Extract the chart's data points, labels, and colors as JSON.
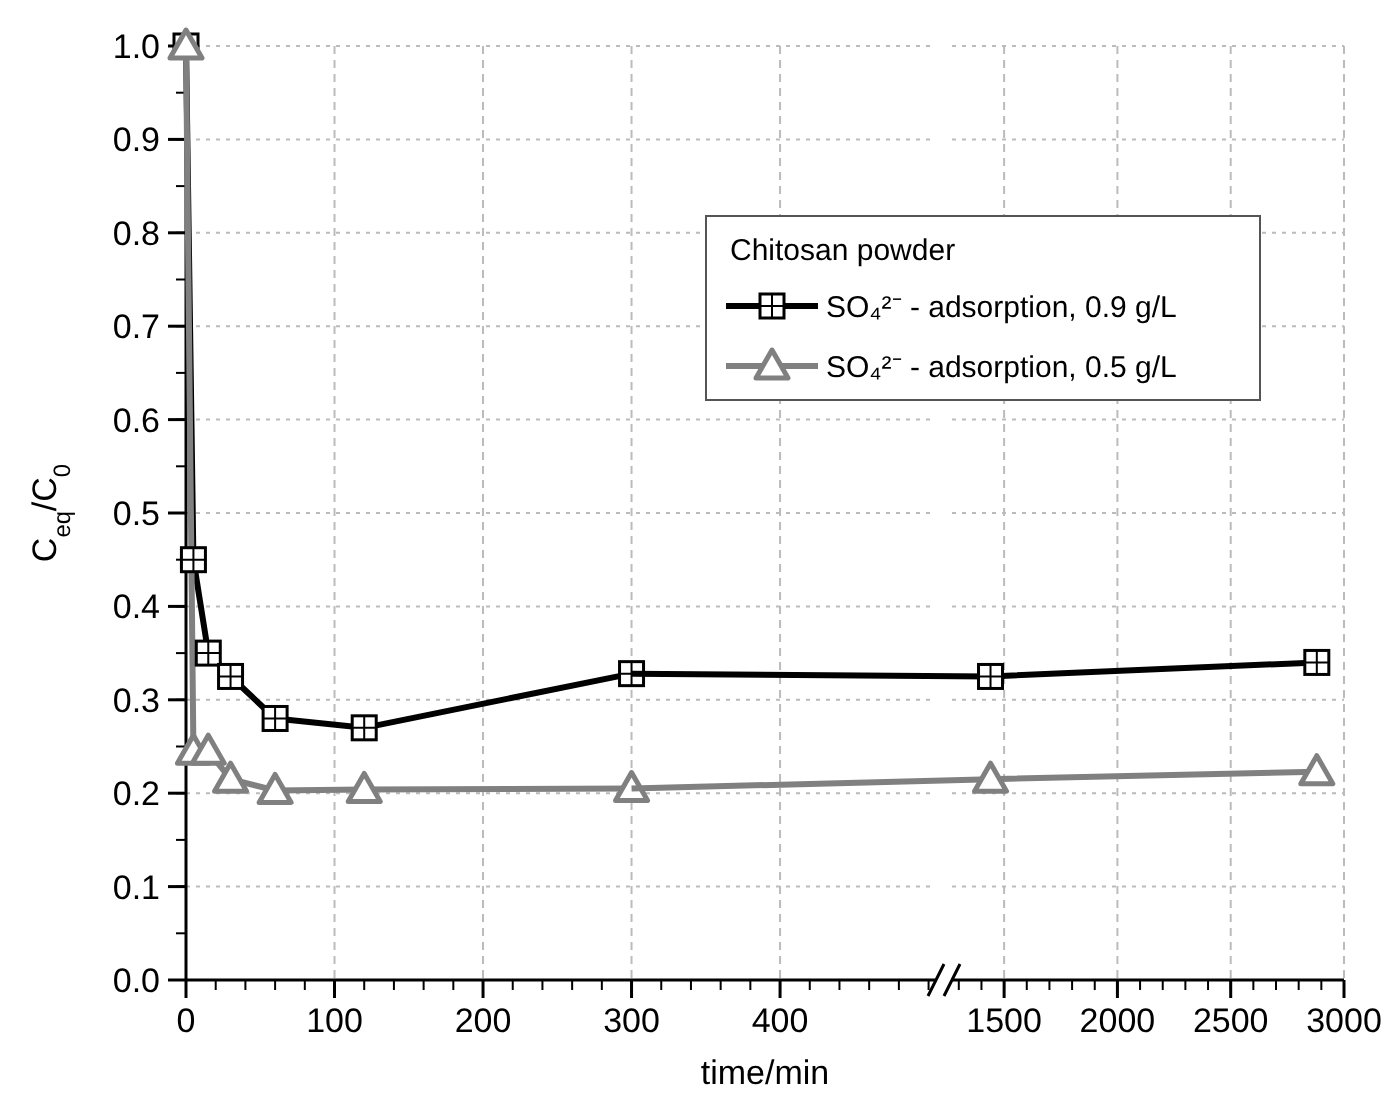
{
  "chart_data": [
    {
      "type": "line",
      "xlabel": "time/min",
      "ylabel": "C$_{eq}$/C$_{0}$",
      "legend_title": "Chitosan powder",
      "xlim": [
        0,
        505
      ],
      "xticks": [
        0,
        100,
        200,
        300,
        400
      ],
      "ylim": [
        0,
        1.0
      ],
      "yticks": [
        {
          "value": 0,
          "label": "0.0"
        },
        0.1,
        0.2,
        0.3,
        0.4,
        0.5,
        0.6,
        0.7,
        0.8,
        0.9,
        {
          "value": 1,
          "label": "1.0"
        }
      ],
      "grid": true,
      "legend": "top right",
      "line_style": "solid",
      "series": [
        {
          "name": "SO₄²⁻ - adsorption, 0.9 g/L",
          "color": "#000000",
          "marker": "square",
          "x": [
            0,
            5,
            15,
            30,
            60,
            120,
            300
          ],
          "values": [
            1.0,
            0.45,
            0.35,
            0.325,
            0.28,
            0.27,
            0.328
          ]
        },
        {
          "name": "SO₄²⁻ - adsorption, 0.5 g/L",
          "color": "#808080",
          "marker": "triangle",
          "x": [
            0,
            5,
            15,
            30,
            60,
            120,
            300
          ],
          "values": [
            1.0,
            0.245,
            0.245,
            0.215,
            0.203,
            0.204,
            0.205
          ]
        }
      ]
    },
    {
      "type": "line",
      "xlim": [
        1270,
        3000
      ],
      "xticks": [
        1500,
        2000,
        2500,
        3000
      ],
      "ylim": [
        0,
        1.0
      ],
      "yticks": [
        0,
        0.1,
        0.2,
        0.3,
        0.4,
        0.5,
        0.6,
        0.7,
        0.8,
        0.9,
        1
      ],
      "tick_labels": "x",
      "grid": true,
      "line_style": "solid",
      "series": [
        {
          "color": "#000000",
          "marker": "square",
          "x": [
            1440,
            2880
          ],
          "values": [
            0.325,
            0.34
          ]
        },
        {
          "color": "#808080",
          "marker": "triangle",
          "x": [
            1440,
            2880
          ],
          "values": [
            0.215,
            0.223
          ]
        }
      ]
    }
  ]
}
